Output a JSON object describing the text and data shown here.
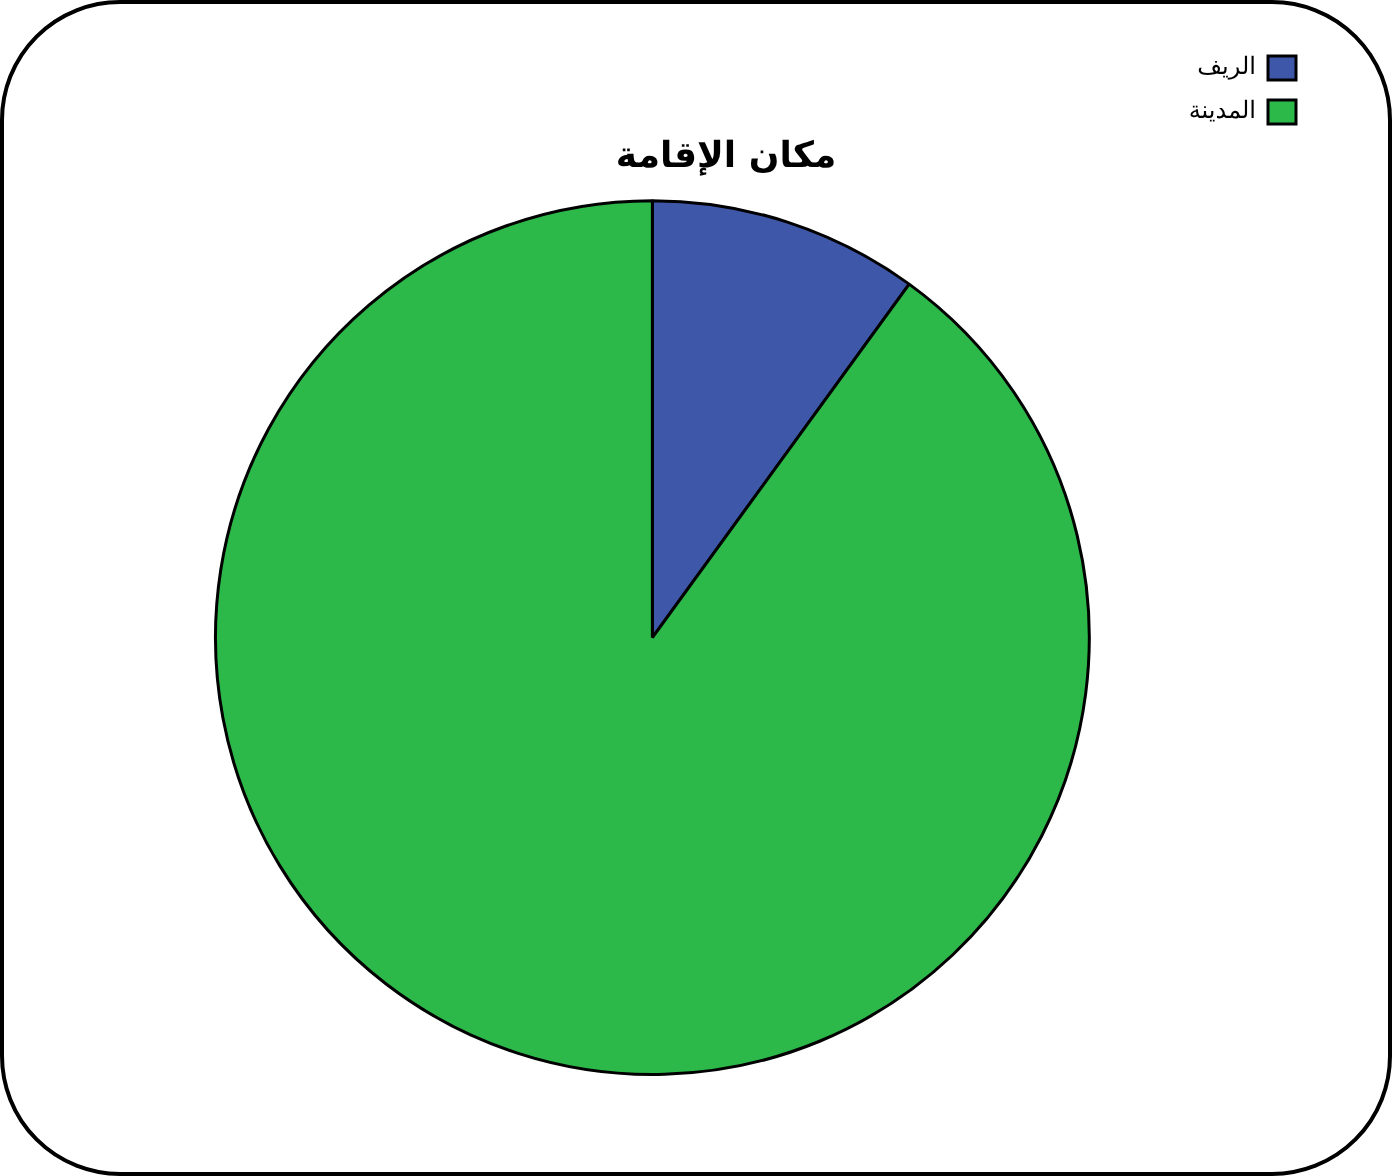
{
  "chart_data": {
    "type": "pie",
    "title": "مكان الإقامة",
    "categories": [
      "الريف",
      "المدينة"
    ],
    "values": [
      10,
      90
    ],
    "colors": [
      "#3f57a9",
      "#2db84a"
    ],
    "legend": "top right"
  }
}
